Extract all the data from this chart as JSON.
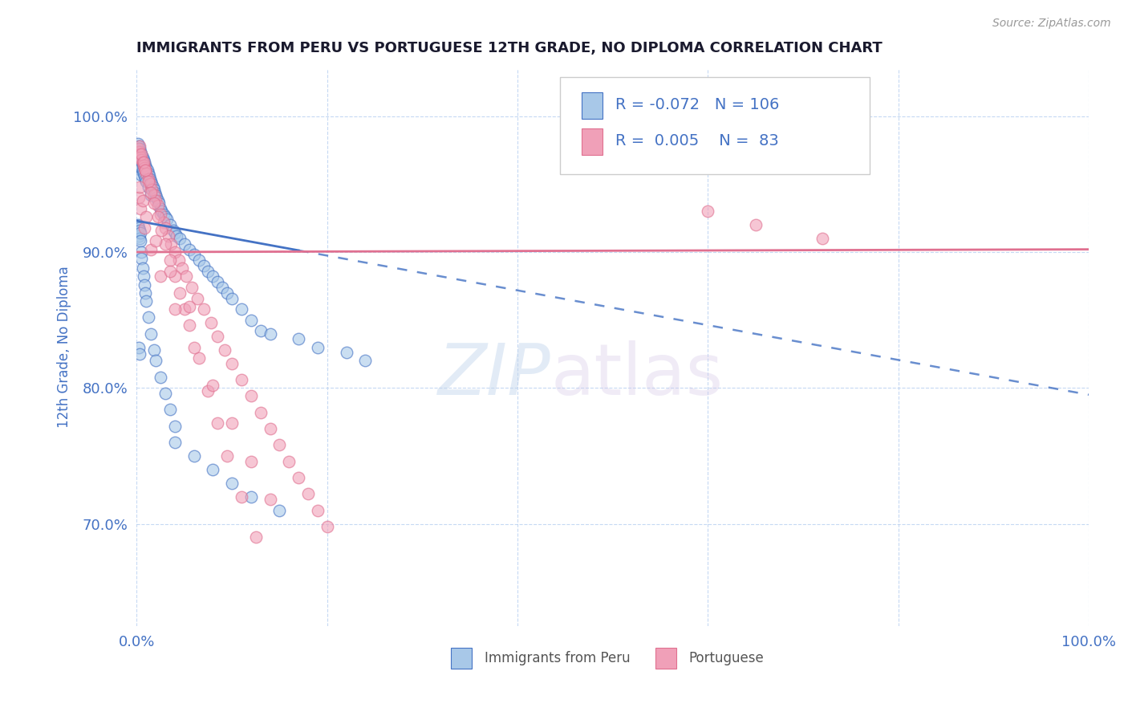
{
  "title": "IMMIGRANTS FROM PERU VS PORTUGUESE 12TH GRADE, NO DIPLOMA CORRELATION CHART",
  "source_text": "Source: ZipAtlas.com",
  "ylabel": "12th Grade, No Diploma",
  "legend_label_1": "Immigrants from Peru",
  "legend_label_2": "Portuguese",
  "R1": -0.072,
  "N1": 106,
  "R2": 0.005,
  "N2": 83,
  "color1": "#A8C8E8",
  "color2": "#F0A0B8",
  "trendline1_color": "#4472C4",
  "trendline2_color": "#E07090",
  "xlim": [
    0.0,
    1.0
  ],
  "ylim": [
    0.625,
    1.035
  ],
  "x_ticks": [
    0.0,
    0.2,
    0.4,
    0.6,
    0.8,
    1.0
  ],
  "x_tick_labels": [
    "0.0%",
    "",
    "",
    "",
    "",
    "100.0%"
  ],
  "y_ticks": [
    0.7,
    0.8,
    0.9,
    1.0
  ],
  "y_tick_labels": [
    "70.0%",
    "80.0%",
    "90.0%",
    "100.0%"
  ],
  "watermark_zip": "ZIP",
  "watermark_atlas": "atlas",
  "trendline1_x0": 0.0,
  "trendline1_y0": 0.923,
  "trendline1_x1": 1.0,
  "trendline1_y1": 0.795,
  "trendline2_x0": 0.0,
  "trendline2_y0": 0.9,
  "trendline2_x1": 1.0,
  "trendline2_y1": 0.902,
  "trendline1_solid_end": 0.17,
  "scatter1_x": [
    0.001,
    0.001,
    0.001,
    0.001,
    0.002,
    0.002,
    0.002,
    0.002,
    0.003,
    0.003,
    0.003,
    0.003,
    0.004,
    0.004,
    0.004,
    0.005,
    0.005,
    0.005,
    0.005,
    0.006,
    0.006,
    0.006,
    0.007,
    0.007,
    0.007,
    0.008,
    0.008,
    0.009,
    0.009,
    0.01,
    0.01,
    0.011,
    0.012,
    0.012,
    0.013,
    0.014,
    0.015,
    0.015,
    0.016,
    0.017,
    0.018,
    0.019,
    0.02,
    0.021,
    0.022,
    0.023,
    0.025,
    0.026,
    0.028,
    0.03,
    0.032,
    0.035,
    0.038,
    0.04,
    0.042,
    0.045,
    0.05,
    0.055,
    0.06,
    0.065,
    0.07,
    0.075,
    0.08,
    0.085,
    0.09,
    0.095,
    0.1,
    0.11,
    0.12,
    0.13,
    0.001,
    0.001,
    0.002,
    0.002,
    0.003,
    0.003,
    0.004,
    0.004,
    0.005,
    0.005,
    0.006,
    0.007,
    0.008,
    0.009,
    0.01,
    0.012,
    0.015,
    0.018,
    0.02,
    0.025,
    0.03,
    0.035,
    0.04,
    0.002,
    0.003,
    0.14,
    0.17,
    0.19,
    0.22,
    0.24,
    0.04,
    0.06,
    0.08,
    0.1,
    0.12,
    0.15
  ],
  "scatter1_y": [
    0.98,
    0.975,
    0.97,
    0.965,
    0.978,
    0.972,
    0.968,
    0.963,
    0.976,
    0.971,
    0.966,
    0.961,
    0.974,
    0.969,
    0.964,
    0.972,
    0.967,
    0.962,
    0.957,
    0.97,
    0.965,
    0.96,
    0.968,
    0.963,
    0.958,
    0.966,
    0.956,
    0.964,
    0.954,
    0.962,
    0.952,
    0.96,
    0.958,
    0.948,
    0.956,
    0.954,
    0.952,
    0.942,
    0.95,
    0.948,
    0.946,
    0.944,
    0.942,
    0.94,
    0.938,
    0.936,
    0.932,
    0.93,
    0.928,
    0.926,
    0.924,
    0.92,
    0.916,
    0.914,
    0.912,
    0.91,
    0.906,
    0.902,
    0.898,
    0.894,
    0.89,
    0.886,
    0.882,
    0.878,
    0.874,
    0.87,
    0.866,
    0.858,
    0.85,
    0.842,
    0.92,
    0.915,
    0.918,
    0.912,
    0.916,
    0.91,
    0.914,
    0.908,
    0.9,
    0.895,
    0.888,
    0.882,
    0.876,
    0.87,
    0.864,
    0.852,
    0.84,
    0.828,
    0.82,
    0.808,
    0.796,
    0.784,
    0.772,
    0.83,
    0.825,
    0.84,
    0.836,
    0.83,
    0.826,
    0.82,
    0.76,
    0.75,
    0.74,
    0.73,
    0.72,
    0.71
  ],
  "scatter2_x": [
    0.001,
    0.002,
    0.003,
    0.004,
    0.005,
    0.006,
    0.007,
    0.008,
    0.009,
    0.01,
    0.012,
    0.014,
    0.016,
    0.018,
    0.02,
    0.022,
    0.025,
    0.028,
    0.03,
    0.033,
    0.036,
    0.04,
    0.044,
    0.048,
    0.052,
    0.058,
    0.064,
    0.07,
    0.078,
    0.085,
    0.092,
    0.1,
    0.11,
    0.12,
    0.13,
    0.14,
    0.15,
    0.16,
    0.17,
    0.18,
    0.19,
    0.2,
    0.003,
    0.005,
    0.007,
    0.009,
    0.012,
    0.015,
    0.018,
    0.022,
    0.026,
    0.03,
    0.035,
    0.04,
    0.045,
    0.05,
    0.055,
    0.065,
    0.075,
    0.085,
    0.095,
    0.11,
    0.125,
    0.002,
    0.004,
    0.008,
    0.015,
    0.025,
    0.04,
    0.06,
    0.08,
    0.1,
    0.12,
    0.14,
    0.003,
    0.006,
    0.01,
    0.02,
    0.035,
    0.055,
    0.6,
    0.65,
    0.72
  ],
  "scatter2_y": [
    0.976,
    0.974,
    0.972,
    0.97,
    0.968,
    0.966,
    0.964,
    0.962,
    0.96,
    0.958,
    0.954,
    0.95,
    0.946,
    0.942,
    0.938,
    0.934,
    0.928,
    0.922,
    0.918,
    0.912,
    0.906,
    0.9,
    0.894,
    0.888,
    0.882,
    0.874,
    0.866,
    0.858,
    0.848,
    0.838,
    0.828,
    0.818,
    0.806,
    0.794,
    0.782,
    0.77,
    0.758,
    0.746,
    0.734,
    0.722,
    0.71,
    0.698,
    0.978,
    0.972,
    0.966,
    0.96,
    0.952,
    0.944,
    0.936,
    0.926,
    0.916,
    0.906,
    0.894,
    0.882,
    0.87,
    0.858,
    0.846,
    0.822,
    0.798,
    0.774,
    0.75,
    0.72,
    0.69,
    0.94,
    0.932,
    0.918,
    0.902,
    0.882,
    0.858,
    0.83,
    0.802,
    0.774,
    0.746,
    0.718,
    0.948,
    0.938,
    0.926,
    0.908,
    0.886,
    0.86,
    0.93,
    0.92,
    0.91
  ]
}
